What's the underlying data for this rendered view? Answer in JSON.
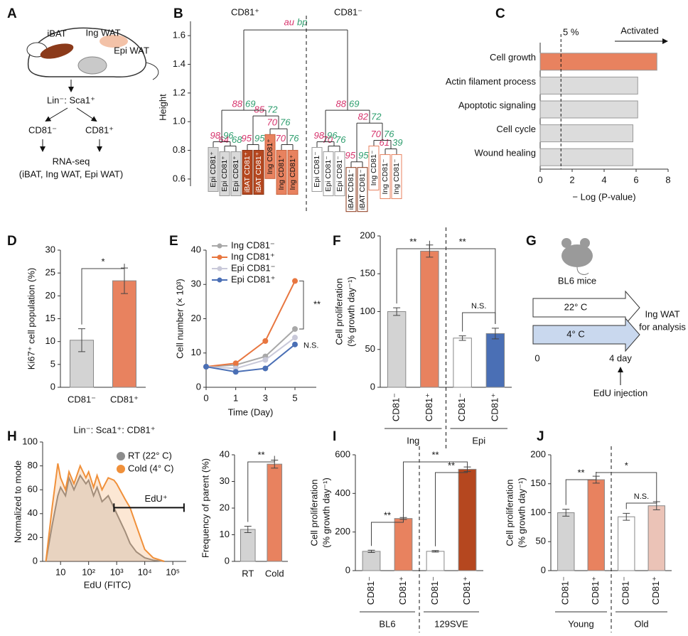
{
  "panel_labels": [
    "A",
    "B",
    "C",
    "D",
    "E",
    "F",
    "G",
    "H",
    "I",
    "J"
  ],
  "panel_a": {
    "labels": [
      "iBAT",
      "Ing WAT",
      "Epi WAT"
    ],
    "sorting": "Lin⁻: Sca1⁺",
    "fractions": [
      "CD81⁻",
      "CD81⁺"
    ],
    "assay": "RNA-seq",
    "samples": "(iBAT, Ing WAT, Epi WAT)"
  },
  "panel_g": {
    "strain": "BL6 mice",
    "conditions": [
      "22° C",
      "4° C"
    ],
    "output": [
      "Ing WAT",
      "for analysis"
    ],
    "timeline": [
      "0",
      "4 day"
    ],
    "injection": "EdU injection"
  },
  "chart_data": [
    {
      "type": "hbar",
      "categories": [
        "Cell growth",
        "Actin filament process",
        "Apoptotic signaling",
        "Cell cycle",
        "Wound healing"
      ],
      "values": [
        7.3,
        6.1,
        6.1,
        5.8,
        5.8
      ],
      "colors": [
        "#e8825f",
        "#dcdcdc",
        "#dcdcdc",
        "#dcdcdc",
        "#dcdcdc"
      ],
      "xlim": [
        0,
        8
      ],
      "xticks": [
        0,
        2,
        4,
        6,
        8
      ],
      "xlabel": "− Log (P-value)",
      "threshold": 1.3,
      "threshold_label": "5 %",
      "direction_label": "Activated"
    },
    {
      "type": "bar",
      "categories": [
        "CD81⁻",
        "CD81⁺"
      ],
      "values": [
        10.3,
        23.3
      ],
      "errors": [
        2.5,
        2.8
      ],
      "colors": [
        "#d3d3d3",
        "#e8825f"
      ],
      "ylim": [
        0,
        30
      ],
      "yticks": [
        0,
        5,
        10,
        15,
        20,
        25,
        30
      ],
      "ylabel": [
        "Ki67⁺ cell population (%)"
      ],
      "significance": [
        "*"
      ]
    },
    {
      "type": "line",
      "categories": [
        "0",
        "1",
        "3",
        "5"
      ],
      "xlabel": "Time (Day)",
      "ylabel": "Cell number (× 10³)",
      "series": [
        {
          "name": "Ing CD81⁻",
          "color": "#a8a8a8",
          "values": [
            6,
            6.5,
            9,
            17
          ]
        },
        {
          "name": "Ing CD81⁺",
          "color": "#e8763f",
          "values": [
            6,
            7,
            13.5,
            31
          ]
        },
        {
          "name": "Epi CD81⁻",
          "color": "#c9c9d9",
          "values": [
            6,
            5.5,
            8,
            14.5
          ]
        },
        {
          "name": "Epi CD81⁺",
          "color": "#4a6fb5",
          "values": [
            6,
            4.5,
            5.5,
            12.5
          ]
        }
      ],
      "ylim": [
        0,
        40
      ],
      "yticks": [
        0,
        10,
        20,
        30,
        40
      ],
      "annotations": [
        "**",
        "N.S."
      ]
    },
    {
      "type": "bar",
      "categories": [
        "CD81⁻",
        "CD81⁺",
        "CD81⁻",
        "CD81⁺"
      ],
      "groups": [
        "Ing",
        "Epi"
      ],
      "values": [
        100,
        180,
        65,
        71
      ],
      "errors": [
        5,
        8,
        3,
        7
      ],
      "colors": [
        "#d3d3d3",
        "#e8825f",
        "#ffffff",
        "#4a6fb5"
      ],
      "ylim": [
        0,
        200
      ],
      "yticks": [
        0,
        50,
        100,
        150,
        200
      ],
      "ylabel": [
        "Cell proliferation",
        "(% growth day⁻¹)"
      ],
      "significance": [
        "**",
        "**",
        "N.S."
      ]
    },
    {
      "type": "area",
      "title": "Lin⁻: Sca1⁺: CD81⁺",
      "log_x": true,
      "x": [
        3,
        5,
        8,
        10,
        15,
        20,
        30,
        50,
        80,
        100,
        150,
        200,
        300,
        500,
        800,
        1000,
        2000,
        3000,
        5000,
        10000,
        20000,
        50000
      ],
      "series": [
        {
          "name": "RT (22° C)",
          "color": "#8c8c8c",
          "values": [
            0,
            30,
            55,
            62,
            55,
            70,
            60,
            72,
            65,
            68,
            55,
            62,
            50,
            55,
            45,
            40,
            25,
            15,
            8,
            3,
            1,
            0
          ]
        },
        {
          "name": "Cold (4° C)",
          "color": "#f0903a",
          "values": [
            0,
            45,
            82,
            70,
            60,
            75,
            65,
            80,
            70,
            75,
            62,
            72,
            60,
            70,
            68,
            65,
            52,
            45,
            30,
            10,
            3,
            0
          ]
        }
      ],
      "xlim": [
        2.3,
        300000
      ],
      "xticks": [
        10,
        {
          "value": 100,
          "label": "10²"
        },
        {
          "value": 1000,
          "label": "10³"
        },
        {
          "value": 10000,
          "label": "10⁴"
        },
        {
          "value": 100000,
          "label": "10⁵"
        }
      ],
      "ylim": [
        0,
        100
      ],
      "yticks": [
        0,
        20,
        40,
        60,
        80,
        100
      ],
      "ylabel": "Normalized to mode",
      "xlabel": "EdU (FITC)",
      "gate": [
        800,
        250000
      ],
      "gate_label": "EdU⁺"
    },
    {
      "type": "bar",
      "categories": [
        "RT",
        "Cold"
      ],
      "values": [
        12,
        36.5
      ],
      "errors": [
        1.2,
        1.5
      ],
      "colors": [
        "#d3d3d3",
        "#e8825f"
      ],
      "ylim": [
        0,
        40
      ],
      "yticks": [
        0,
        10,
        20,
        30,
        40
      ],
      "ylabel": [
        "Frequency of parent (%)"
      ],
      "significance": [
        "**"
      ]
    },
    {
      "type": "bar",
      "categories": [
        "CD81⁻",
        "CD81⁺",
        "CD81⁻",
        "CD81⁺"
      ],
      "groups": [
        "BL6",
        "129SVE"
      ],
      "values": [
        100,
        270,
        100,
        525
      ],
      "errors": [
        6,
        5,
        4,
        12
      ],
      "colors": [
        "#d3d3d3",
        "#e8825f",
        "#ffffff",
        "#b5471f"
      ],
      "ylim": [
        0,
        600
      ],
      "yticks": [
        0,
        200,
        400,
        600
      ],
      "ylabel": [
        "Cell proliferation",
        "(% growth day⁻¹)"
      ],
      "significance": [
        "**",
        "**",
        "**"
      ]
    },
    {
      "type": "bar",
      "categories": [
        "CD81⁻",
        "CD81⁺",
        "CD81⁻",
        "CD81⁺"
      ],
      "groups": [
        "Young",
        "Old"
      ],
      "values": [
        100,
        157,
        93,
        112
      ],
      "errors": [
        6,
        6,
        6,
        7
      ],
      "colors": [
        "#d3d3d3",
        "#e8825f",
        "#ffffff",
        "#ebc3b7"
      ],
      "ylim": [
        0,
        200
      ],
      "yticks": [
        0,
        50,
        100,
        150,
        200
      ],
      "ylabel": [
        "Cell proliferation",
        "(% growth day⁻¹)"
      ],
      "significance": [
        "**",
        "*",
        "N.S."
      ]
    },
    {
      "type": "dendrogram",
      "headers": [
        "CD81⁺",
        "CD81⁻"
      ],
      "ylabel": "Height",
      "ylim": [
        0.55,
        1.7
      ],
      "yticks": [
        0.6,
        0.8,
        {
          "value": 1,
          "label": "1.0"
        },
        1.2,
        1.4,
        1.6
      ],
      "leaves": [
        "Epi CD81⁺",
        "Epi CD81⁺",
        "Epi CD81⁺",
        "iBAT CD81⁺",
        "iBAT CD81⁺",
        "Ing CD81⁺",
        "Ing CD81⁺",
        "Ing CD81⁺",
        "Epi CD81⁻",
        "Epi CD81⁻",
        "Epi CD81⁻",
        "iBAT CD81⁻",
        "iBAT CD81⁻",
        "Ing CD81⁻",
        "Ing CD81⁻",
        "Ing CD81⁻"
      ],
      "leaf_fills": [
        "#d9d9d9",
        "#d9d9d9",
        "#d9d9d9",
        "#b5471f",
        "#b5471f",
        "#e8825f",
        "#e8825f",
        "#e8825f",
        "#ffffff",
        "#ffffff",
        "#ffffff",
        "#ffffff",
        "#ffffff",
        "#ffffff",
        "#ffffff",
        "#ffffff"
      ],
      "leaf_strokes": [
        "#999999",
        "#999999",
        "#999999",
        "#8a3516",
        "#8a3516",
        "#c8643f",
        "#c8643f",
        "#c8643f",
        "#999999",
        "#999999",
        "#999999",
        "#8a3516",
        "#8a3516",
        "#e8825f",
        "#e8825f",
        "#e8825f"
      ],
      "nodes": [
        {
          "height": 0.83,
          "au": 64,
          "bp": 68
        },
        {
          "height": 0.86,
          "au": 98,
          "bp": 96
        },
        {
          "height": 0.84,
          "au": 95,
          "bp": 95
        },
        {
          "height": 0.84,
          "au": 70,
          "bp": 76
        },
        {
          "height": 0.95,
          "au": 70,
          "bp": 76
        },
        {
          "height": 1.04,
          "au": 85,
          "bp": 72
        },
        {
          "height": 1.08,
          "au": 88,
          "bp": 69
        },
        {
          "height": 0.83,
          "au": 70,
          "bp": 76
        },
        {
          "height": 0.86,
          "au": 98,
          "bp": 96
        },
        {
          "height": 0.72,
          "au": 95,
          "bp": 95
        },
        {
          "height": 0.81,
          "au": 61,
          "bp": 39
        },
        {
          "height": 0.87,
          "au": 70,
          "bp": 76
        },
        {
          "height": 0.99,
          "au": 82,
          "bp": 72
        },
        {
          "height": 1.08,
          "au": 88,
          "bp": 69
        }
      ],
      "root_height": 1.64,
      "root_labels": [
        "au",
        "bp"
      ],
      "au_color": "#d6336c",
      "bp_color": "#2e9e6e"
    }
  ]
}
